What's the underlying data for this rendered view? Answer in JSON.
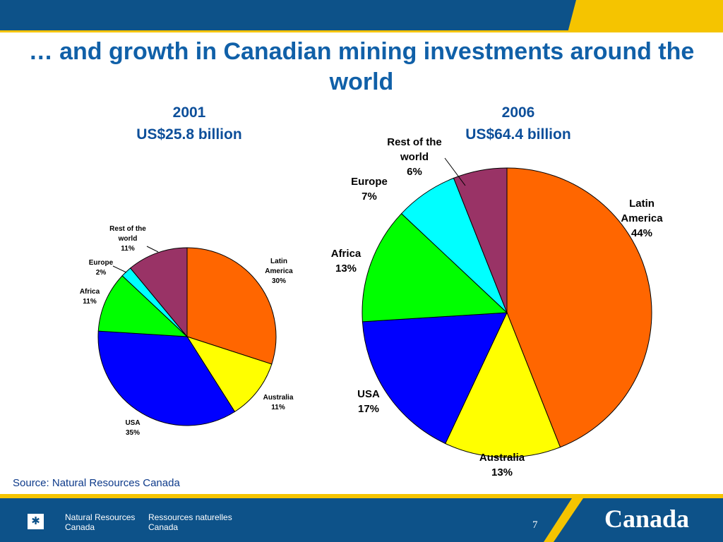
{
  "slide": {
    "title": "… and growth in Canadian mining investments around the world",
    "source": "Source:  Natural Resources Canada",
    "page_number": "7"
  },
  "footer": {
    "dept_en_line1": "Natural Resources",
    "dept_en_line2": "Canada",
    "dept_fr_line1": "Ressources naturelles",
    "dept_fr_line2": "Canada",
    "wordmark": "Canada",
    "flag_icon": "canadian-flag-icon"
  },
  "colors": {
    "band": "#0d5289",
    "gold": "#f5c400",
    "title": "#1060a8"
  },
  "chart_data": [
    {
      "type": "pie",
      "title": "2001",
      "subtitle": "US$25.8 billion",
      "start": "12 o'clock, clockwise",
      "slices": [
        {
          "label": "Latin America",
          "value": 30,
          "display": "30%",
          "color": "#ff6600"
        },
        {
          "label": "Australia",
          "value": 11,
          "display": "11%",
          "color": "#ffff00"
        },
        {
          "label": "USA",
          "value": 35,
          "display": "35%",
          "color": "#0000ff"
        },
        {
          "label": "Africa",
          "value": 11,
          "display": "11%",
          "color": "#00ff00"
        },
        {
          "label": "Europe",
          "value": 2,
          "display": "2%",
          "color": "#00ffff"
        },
        {
          "label": "Rest of the world",
          "value": 11,
          "display": "11%",
          "color": "#993366"
        }
      ]
    },
    {
      "type": "pie",
      "title": "2006",
      "subtitle": "US$64.4 billion",
      "start": "12 o'clock, clockwise",
      "slices": [
        {
          "label": "Latin America",
          "value": 44,
          "display": "44%",
          "color": "#ff6600"
        },
        {
          "label": "Australia",
          "value": 13,
          "display": "13%",
          "color": "#ffff00"
        },
        {
          "label": "USA",
          "value": 17,
          "display": "17%",
          "color": "#0000ff"
        },
        {
          "label": "Africa",
          "value": 13,
          "display": "13%",
          "color": "#00ff00"
        },
        {
          "label": "Europe",
          "value": 7,
          "display": "7%",
          "color": "#00ffff"
        },
        {
          "label": "Rest of the world",
          "value": 6,
          "display": "6%",
          "color": "#993366"
        }
      ]
    }
  ]
}
